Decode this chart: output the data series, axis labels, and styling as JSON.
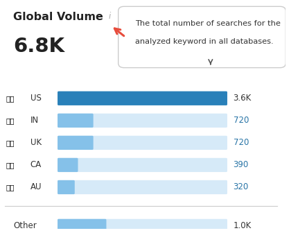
{
  "title": "Global Volume",
  "title_info": "i",
  "global_value": "6.8K",
  "tooltip_line1": "The total number of searches for the",
  "tooltip_line2": "analyzed keyword in all databases.",
  "categories": [
    "US",
    "IN",
    "UK",
    "CA",
    "AU"
  ],
  "values": [
    3600,
    720,
    720,
    390,
    320
  ],
  "labels": [
    "3.6K",
    "720",
    "720",
    "390",
    "320"
  ],
  "other_value": 1000,
  "other_label": "1.0K",
  "max_value": 3600,
  "bar_color_filled": "#2980B9",
  "bar_color_filled_light": "#85C1E9",
  "bar_color_bg": "#D6EAF8",
  "other_bar_color": "#85C1E9",
  "value_color": "#2874A6",
  "bg_color": "#FFFFFF",
  "arrow_color": "#E74C3C",
  "tooltip_bg": "#FFFFFF",
  "tooltip_border": "#CCCCCC",
  "label_color_us": "#333333",
  "label_color_others": "#2874A6"
}
